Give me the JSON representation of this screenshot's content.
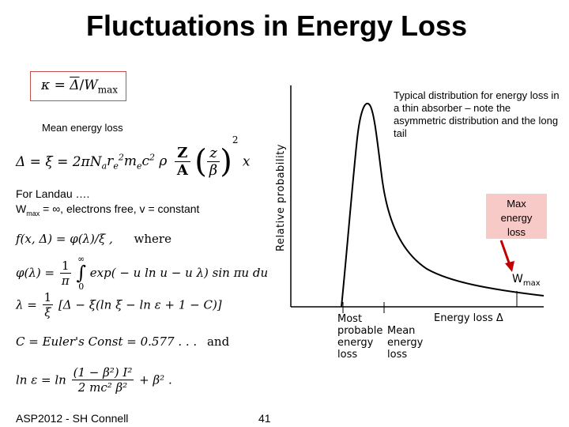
{
  "title": "Fluctuations in Energy Loss",
  "kappa_formula": {
    "lhs": "κ",
    "eq": "=",
    "delta": "Δ",
    "slash": "/",
    "w": "W",
    "sub": "max"
  },
  "mean_energy_loss_label": "Mean energy loss",
  "mean_formula": {
    "lhs": "Δ = ξ = 2πN",
    "sub_a": "a",
    "r": "r",
    "sub_e": "e",
    "sup_2": "2",
    "mc": "m",
    "sub_e2": "e",
    "c": "c",
    "sup_2b": "2",
    "rho": "ρ",
    "Z": "Z",
    "A": "A",
    "z": "z",
    "beta": "β",
    "sup_2c": "2",
    "x": "x"
  },
  "landau_line1": "For Landau ….",
  "landau_line2_w": "W",
  "landau_line2_sub": "max",
  "landau_line2_rest": " = ∞, electrons free, v = constant",
  "eq_f": "f(x, Δ) = φ(λ)/ξ ,",
  "where_label": "where",
  "eq_phi": {
    "lhs": "φ(λ) =",
    "one": "1",
    "pi": "π",
    "upper": "∞",
    "lower": "0",
    "rhs": "exp( − u ln u − u λ) sin πu du"
  },
  "eq_lambda": {
    "lhs": "λ =",
    "one": "1",
    "xi": "ξ",
    "rhs": "[Δ − ξ(ln ξ − ln ε + 1 − C)]"
  },
  "eq_C": {
    "text": "C = Euler's Const = 0.577 . . .",
    "and": "and"
  },
  "eq_ln": {
    "lhs": "ln ε = ln",
    "num": "(1 − β²) I²",
    "den": "2 mc² β²",
    "rhs": "+ β² ."
  },
  "annotation": "Typical distribution for energy loss in a thin absorber – note the asymmetric distribution and the long tail",
  "max_box": {
    "line1": "Max",
    "line2": "energy",
    "line3": "loss"
  },
  "graph": {
    "ylabel": "Relative probability",
    "xlabel": "Energy loss Δ",
    "wmax": "W",
    "wmax_sub": "max",
    "most_probable": [
      "Most",
      "probable",
      "energy",
      "loss"
    ],
    "mean_loss": [
      "Mean",
      "energy",
      "loss"
    ]
  },
  "footer": {
    "left": "ASP2012 - SH Connell",
    "page": "41"
  },
  "colors": {
    "accent_red": "#c0504d",
    "max_box_bg": "#f7c9c7",
    "arrow": "#c00000"
  }
}
